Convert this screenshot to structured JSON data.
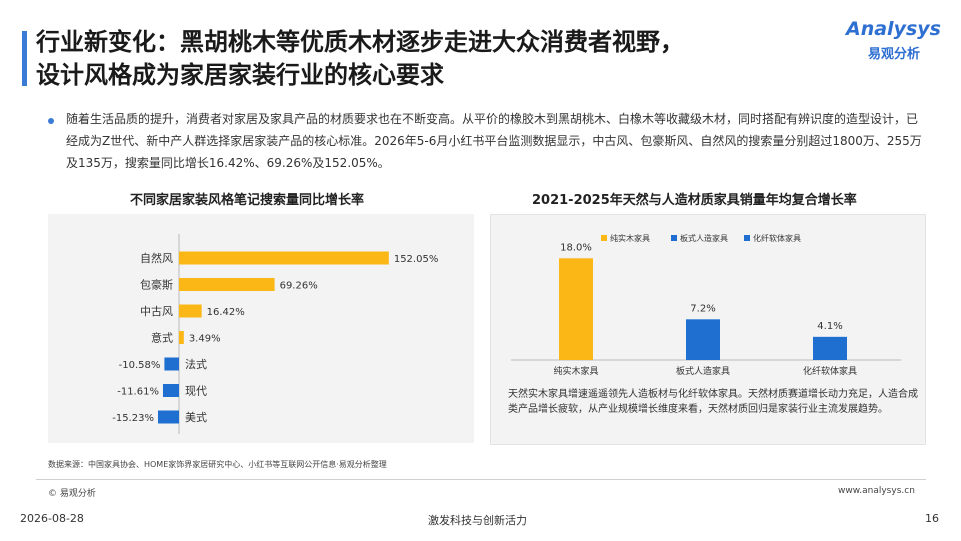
{
  "title": {
    "line1": "行业新变化：黑胡桃木等优质木材逐步走进大众消费者视野，",
    "line2": "设计风格成为家居家装行业的核心要求"
  },
  "logo": {
    "main": "Analysys",
    "sub": "易观分析"
  },
  "paragraph": "随着生活品质的提升，消费者对家居及家具产品的材质要求也在不断变高。从平价的橡胶木到黑胡桃木、白橡木等收藏级木材，同时搭配有辨识度的造型设计，已经成为Z世代、新中产人群选择家居家装产品的核心标准。2026年5-6月小红书平台监测数据显示，中古风、包豪斯风、自然风的搜索量分别超过1800万、255万及135万，搜索量同比增长16.42%、69.26%及152.05%。",
  "chart_data": [
    {
      "type": "bar",
      "orientation": "horizontal",
      "title": "不同家居家装风格笔记搜索量同比增长率",
      "categories": [
        "自然风",
        "包豪斯",
        "中古风",
        "意式",
        "法式",
        "现代",
        "美式"
      ],
      "values": [
        152.05,
        69.26,
        16.42,
        3.49,
        -10.58,
        -11.61,
        -15.23
      ],
      "value_labels": [
        "152.05%",
        "69.26%",
        "16.42%",
        "3.49%",
        "-10.58%",
        "-11.61%",
        "-15.23%"
      ],
      "unit": "%",
      "colors": {
        "positive": "#fbb715",
        "negative": "#1f6fd1"
      },
      "grid": false
    },
    {
      "type": "bar",
      "title": "2021-2025年天然与人造材质家具销量年均复合增长率",
      "categories": [
        "纯实木家具",
        "板式人造家具",
        "化纤软体家具"
      ],
      "values": [
        18.0,
        7.2,
        4.1
      ],
      "value_labels": [
        "18.0%",
        "7.2%",
        "4.1%"
      ],
      "unit": "%",
      "legend": [
        "纯实木家具",
        "板式人造家具",
        "化纤软体家具"
      ],
      "legend_position": "top-left",
      "colors": [
        "#fbb715",
        "#1f6fd1",
        "#1f6fd1"
      ],
      "grid": false
    }
  ],
  "note": "天然实木家具增速遥遥领先人造板材与化纤软体家具。天然材质赛道增长动力充足，人造合成类产品增长疲软，从产业规模增长维度来看，天然材质回归是家装行业主流发展趋势。",
  "source": "数据来源：中国家具协会、HOME家饰界家居研究中心、小红书等互联网公开信息·易观分析整理",
  "footer": {
    "copyright": "© 易观分析",
    "site": "www.analysys.cn",
    "date": "2026-08-28",
    "slogan": "激发科技与创新活力",
    "page": "16"
  }
}
